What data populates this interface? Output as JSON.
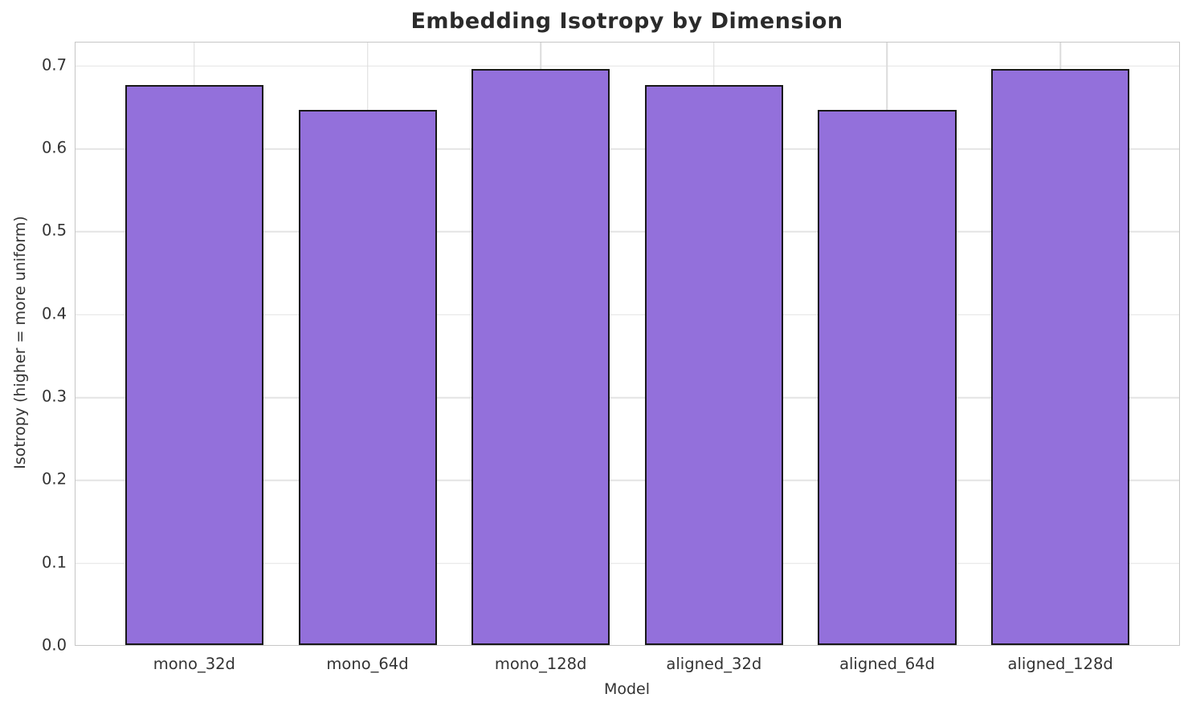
{
  "chart_data": {
    "type": "bar",
    "title": "Embedding Isotropy by Dimension",
    "xlabel": "Model",
    "ylabel": "Isotropy (higher = more uniform)",
    "categories": [
      "mono_32d",
      "mono_64d",
      "mono_128d",
      "aligned_32d",
      "aligned_64d",
      "aligned_128d"
    ],
    "values": [
      0.676,
      0.646,
      0.695,
      0.676,
      0.646,
      0.695
    ],
    "ylim": [
      0,
      0.727
    ],
    "yticks": [
      0.0,
      0.1,
      0.2,
      0.3,
      0.4,
      0.5,
      0.6,
      0.7
    ],
    "grid": true,
    "legend": null,
    "bar_color": "#9370db",
    "bar_edge_color": "#181818",
    "grid_color": "#e2e2e2",
    "plot_border_color": "#c6c6c6",
    "title_color": "#2b2b2b",
    "tick_color": "#333333"
  }
}
